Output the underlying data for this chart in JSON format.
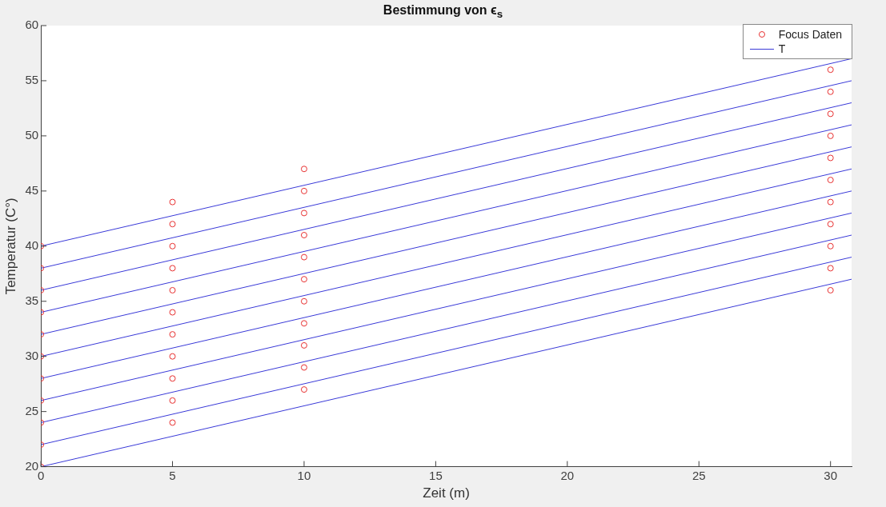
{
  "chart_data": {
    "type": "scatter",
    "title": "Bestimmung von ϵ$_{s}$",
    "xlabel": "Zeit (m)",
    "ylabel": "Temperatur (C°)",
    "xlim": [
      0,
      30.8
    ],
    "xticks": [
      0,
      5,
      10,
      15,
      20,
      25,
      30
    ],
    "ylim": [
      20,
      60
    ],
    "yticks": [
      20,
      25,
      30,
      35,
      40,
      45,
      50,
      55,
      60
    ],
    "grid": false,
    "legend": "top right",
    "series": [
      {
        "name": "Focus Daten",
        "type": "scatter",
        "marker": "circle",
        "color": "#e83030",
        "x": [
          0,
          0,
          0,
          0,
          0,
          0,
          0,
          0,
          0,
          0,
          0,
          5,
          5,
          5,
          5,
          5,
          5,
          5,
          5,
          5,
          5,
          5,
          10,
          10,
          10,
          10,
          10,
          10,
          10,
          10,
          10,
          10,
          10,
          30,
          30,
          30,
          30,
          30,
          30,
          30,
          30,
          30,
          30,
          30
        ],
        "values": [
          20,
          22,
          24,
          26,
          28,
          30,
          32,
          34,
          36,
          38,
          40,
          24,
          26,
          28,
          30,
          32,
          34,
          36,
          38,
          40,
          42,
          44,
          27,
          29,
          31,
          33,
          35,
          37,
          39,
          41,
          43,
          45,
          47,
          36,
          38,
          40,
          42,
          44,
          46,
          48,
          50,
          52,
          54,
          56
        ]
      },
      {
        "name": "T",
        "type": "line",
        "marker": "none",
        "color": "#3a3ad8",
        "x": [
          0,
          30.8
        ],
        "values": [
          20,
          37
        ]
      },
      {
        "type": "line",
        "marker": "none",
        "color": "#3a3ad8",
        "x": [
          0,
          30.8
        ],
        "values": [
          22,
          39
        ]
      },
      {
        "type": "line",
        "marker": "none",
        "color": "#3a3ad8",
        "x": [
          0,
          30.8
        ],
        "values": [
          24,
          41
        ]
      },
      {
        "type": "line",
        "marker": "none",
        "color": "#3a3ad8",
        "x": [
          0,
          30.8
        ],
        "values": [
          26,
          43
        ]
      },
      {
        "type": "line",
        "marker": "none",
        "color": "#3a3ad8",
        "x": [
          0,
          30.8
        ],
        "values": [
          28,
          45
        ]
      },
      {
        "type": "line",
        "marker": "none",
        "color": "#3a3ad8",
        "x": [
          0,
          30.8
        ],
        "values": [
          30,
          47
        ]
      },
      {
        "type": "line",
        "marker": "none",
        "color": "#3a3ad8",
        "x": [
          0,
          30.8
        ],
        "values": [
          32,
          49
        ]
      },
      {
        "type": "line",
        "marker": "none",
        "color": "#3a3ad8",
        "x": [
          0,
          30.8
        ],
        "values": [
          34,
          51
        ]
      },
      {
        "type": "line",
        "marker": "none",
        "color": "#3a3ad8",
        "x": [
          0,
          30.8
        ],
        "values": [
          36,
          53
        ]
      },
      {
        "type": "line",
        "marker": "none",
        "color": "#3a3ad8",
        "x": [
          0,
          30.8
        ],
        "values": [
          38,
          55
        ]
      },
      {
        "type": "line",
        "marker": "none",
        "color": "#3a3ad8",
        "x": [
          0,
          30.8
        ],
        "values": [
          40,
          57
        ]
      }
    ]
  }
}
